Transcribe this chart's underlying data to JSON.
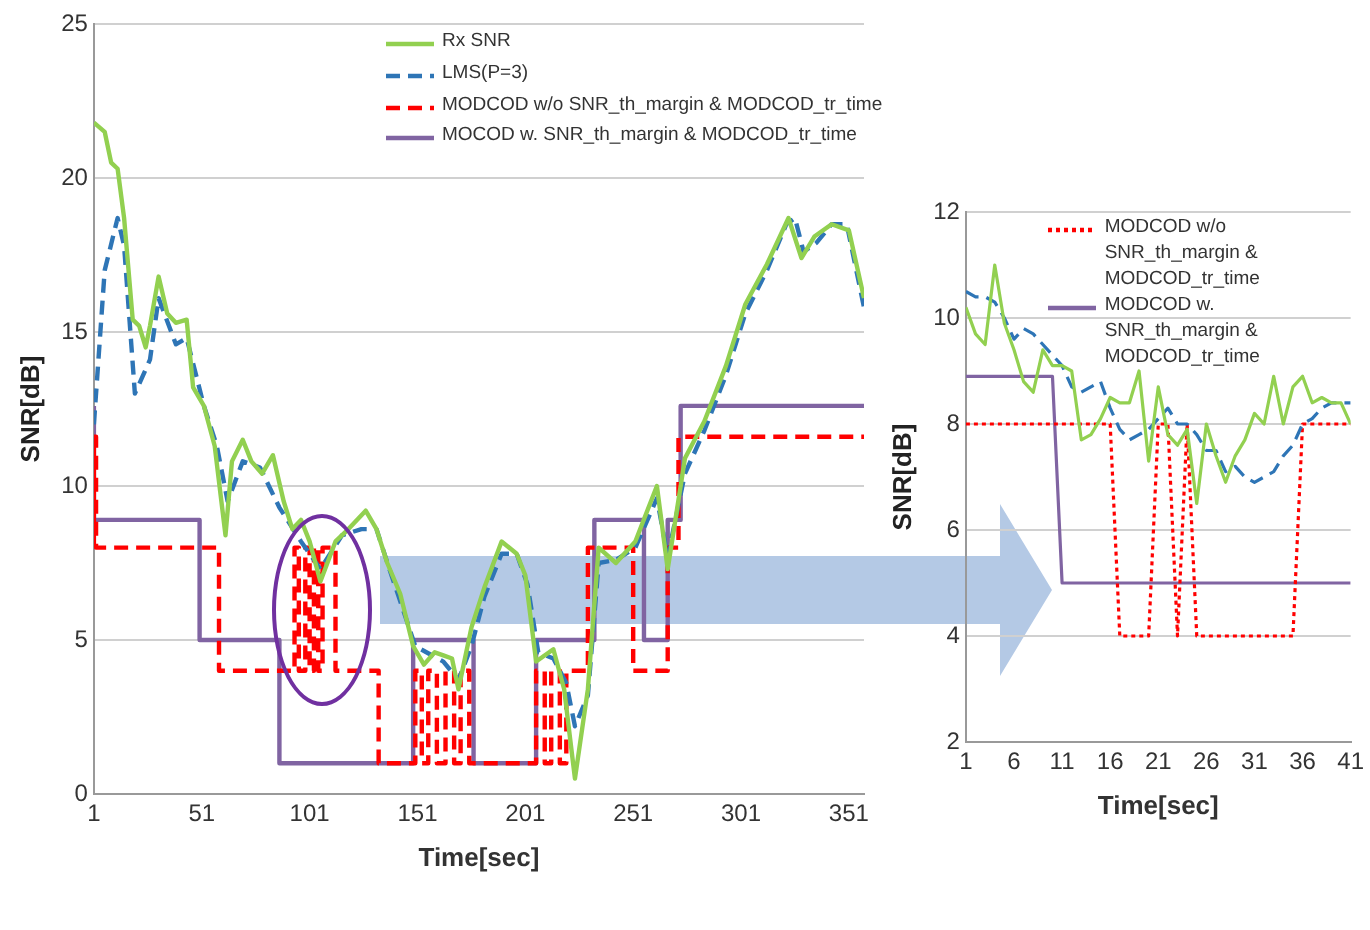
{
  "chart_data": [
    {
      "type": "line",
      "xlabel": "Time[sec]",
      "ylabel": "SNR[dB]",
      "xlim": [
        1,
        358
      ],
      "xticks": [
        1,
        51,
        101,
        151,
        201,
        251,
        301,
        351
      ],
      "ylim": [
        0,
        25
      ],
      "yticks": [
        0,
        5,
        10,
        15,
        20,
        25
      ],
      "grid": "y",
      "legend": "top right",
      "series": [
        {
          "name": "Rx SNR",
          "type": "line",
          "color": "#92d050",
          "line_style": "solid",
          "x": [
            1,
            6,
            9,
            12,
            15,
            19,
            22,
            25,
            27,
            31,
            35,
            39,
            44,
            47,
            52,
            57,
            62,
            65,
            70,
            74,
            79,
            84,
            89,
            93,
            97,
            101,
            106,
            113,
            119,
            127,
            132,
            137,
            143,
            149,
            154,
            159,
            163,
            167,
            170,
            176,
            182,
            190,
            197,
            201,
            206,
            214,
            219,
            224,
            230,
            235,
            243,
            252,
            262,
            267,
            275,
            284,
            294,
            303,
            313,
            323,
            329,
            335,
            343,
            351,
            358
          ],
          "values": [
            21.8,
            21.5,
            20.5,
            20.3,
            18.7,
            15.4,
            15.2,
            14.5,
            15.2,
            16.8,
            15.6,
            15.3,
            15.4,
            13.2,
            12.6,
            11.3,
            8.4,
            10.8,
            11.5,
            10.8,
            10.4,
            11,
            9.5,
            8.6,
            8.9,
            8.2,
            6.9,
            8.2,
            8.6,
            9.2,
            8.6,
            7.5,
            6.5,
            4.8,
            4.2,
            4.6,
            4.5,
            4.4,
            3.4,
            5.4,
            6.7,
            8.2,
            7.8,
            7.1,
            4.3,
            4.7,
            3.4,
            0.5,
            3.4,
            8,
            7.5,
            8.2,
            10,
            7.3,
            10.9,
            12.1,
            13.9,
            15.9,
            17.2,
            18.7,
            17.4,
            18.1,
            18.5,
            18.3,
            16.1
          ]
        },
        {
          "name": "LMS(P=3)",
          "type": "line",
          "color": "#2e75b6",
          "line_style": "dashed",
          "x": [
            1,
            6,
            12,
            15,
            20,
            27,
            31,
            39,
            44,
            52,
            58,
            63,
            70,
            78,
            87,
            97,
            106,
            116,
            125,
            132,
            138,
            150,
            163,
            170,
            176,
            182,
            190,
            197,
            202,
            207,
            214,
            220,
            224,
            230,
            235,
            243,
            252,
            262,
            267,
            275,
            284,
            294,
            303,
            313,
            322,
            326,
            330,
            336,
            343,
            350,
            358
          ],
          "values": [
            12,
            17,
            18.7,
            17.8,
            13,
            14.1,
            16.1,
            14.6,
            14.8,
            12.6,
            11.3,
            9.5,
            10.8,
            10.6,
            9.3,
            8.2,
            7.3,
            8.4,
            8.6,
            8.6,
            7.3,
            4.8,
            4.3,
            3.7,
            4.8,
            6.4,
            7.8,
            7.8,
            6.8,
            4.6,
            4.4,
            3.6,
            2.2,
            3.2,
            7.5,
            7.6,
            8,
            9.6,
            7.7,
            10.4,
            11.8,
            13.6,
            15.6,
            17,
            18.5,
            18.7,
            17.6,
            17.9,
            18.5,
            18.5,
            15.8
          ]
        },
        {
          "name": "MODCOD w/o SNR_th_margin & MODCOD_tr_time",
          "type": "step",
          "color": "#ff0000",
          "line_style": "dashed",
          "x": [
            1,
            2,
            59,
            94,
            96,
            99,
            101,
            103,
            105,
            107,
            113,
            133,
            150,
            153,
            156,
            160,
            164,
            168,
            171,
            175,
            206,
            210,
            213,
            217,
            220,
            230,
            251,
            267,
            272,
            286,
            358
          ],
          "values": [
            8,
            11.6,
            8,
            4,
            8,
            4,
            8,
            4,
            8,
            4,
            8,
            4,
            1,
            4,
            1,
            4,
            1,
            4,
            1,
            4,
            1,
            4,
            1,
            4,
            1,
            4,
            8,
            4,
            8,
            11.6,
            11.6
          ]
        },
        {
          "name": "MOCOD w. SNR_th_margin & MODCOD_tr_time",
          "type": "step",
          "color": "#8064a2",
          "line_style": "solid",
          "x": [
            1,
            50,
            87,
            149,
            177,
            206,
            233,
            256,
            267,
            273,
            288,
            358
          ],
          "values": [
            12.6,
            8.9,
            5,
            1,
            5,
            1,
            5,
            8.9,
            5,
            8.9,
            12.6,
            12.6
          ]
        }
      ]
    },
    {
      "type": "line",
      "xlabel": "Time[sec]",
      "ylabel": "SNR[dB]",
      "xlim": [
        1,
        41
      ],
      "xticks": [
        1,
        6,
        11,
        16,
        21,
        26,
        31,
        36,
        41
      ],
      "ylim": [
        2,
        12
      ],
      "yticks": [
        2,
        4,
        6,
        8,
        10,
        12
      ],
      "grid": "y",
      "legend": "top right",
      "x": [
        1,
        2,
        3,
        4,
        5,
        6,
        7,
        8,
        9,
        10,
        11,
        12,
        13,
        14,
        15,
        16,
        17,
        18,
        19,
        20,
        21,
        22,
        23,
        24,
        25,
        26,
        27,
        28,
        29,
        30,
        31,
        32,
        33,
        34,
        35,
        36,
        37,
        38,
        39,
        40,
        41
      ],
      "series": [
        {
          "type": "line",
          "color": "#92d050",
          "line_style": "solid",
          "values": [
            10.2,
            9.7,
            9.5,
            11,
            9.9,
            9.4,
            8.8,
            8.6,
            9.4,
            9.1,
            9.1,
            9.0,
            7.7,
            7.8,
            8.1,
            8.5,
            8.4,
            8.4,
            9.0,
            7.3,
            8.7,
            7.8,
            7.6,
            7.9,
            6.5,
            8.0,
            7.4,
            6.9,
            7.4,
            7.7,
            8.2,
            8.0,
            8.9,
            8.0,
            8.7,
            8.9,
            8.4,
            8.5,
            8.4,
            8.4,
            8.0
          ]
        },
        {
          "type": "line",
          "color": "#2e75b6",
          "line_style": "dashed",
          "values": [
            10.5,
            10.4,
            10.4,
            10.3,
            10.0,
            9.6,
            9.8,
            9.7,
            9.5,
            9.3,
            9.1,
            8.7,
            8.6,
            8.7,
            8.8,
            8.3,
            7.9,
            7.7,
            7.8,
            7.9,
            8.1,
            8.3,
            8.0,
            8.0,
            7.8,
            7.5,
            7.5,
            7.1,
            7.2,
            7.0,
            6.9,
            7.0,
            7.1,
            7.4,
            7.6,
            8.0,
            8.1,
            8.3,
            8.4,
            8.4,
            8.4
          ]
        },
        {
          "name": "MODCOD w/o SNR_th_margin & MODCOD_tr_time",
          "type": "line",
          "color": "#ff0000",
          "line_style": "dotted",
          "values": [
            8,
            8,
            8,
            8,
            8,
            8,
            8,
            8,
            8,
            8,
            8,
            8,
            8,
            8,
            8,
            8,
            4,
            4,
            4,
            4,
            8,
            8,
            4,
            8,
            4,
            4,
            4,
            4,
            4,
            4,
            4,
            4,
            4,
            4,
            4,
            8,
            8,
            8,
            8,
            8,
            8
          ]
        },
        {
          "name": "MODCOD w. SNR_th_margin & MODCOD_tr_time",
          "type": "line",
          "color": "#8064a2",
          "line_style": "solid",
          "values": [
            8.9,
            8.9,
            8.9,
            8.9,
            8.9,
            8.9,
            8.9,
            8.9,
            8.9,
            8.9,
            5,
            5,
            5,
            5,
            5,
            5,
            5,
            5,
            5,
            5,
            5,
            5,
            5,
            5,
            5,
            5,
            5,
            5,
            5,
            5,
            5,
            5,
            5,
            5,
            5,
            5,
            5,
            5,
            5,
            5,
            5
          ]
        }
      ]
    }
  ]
}
